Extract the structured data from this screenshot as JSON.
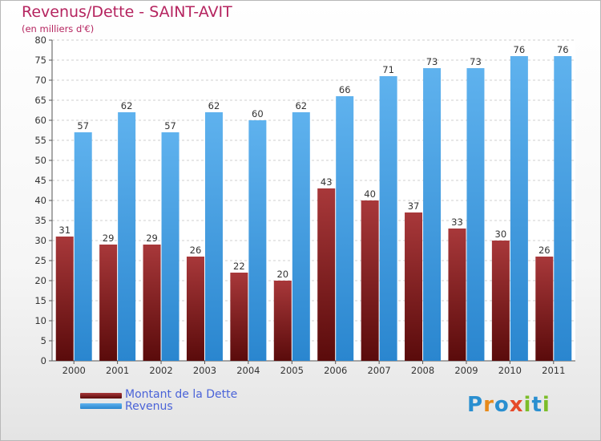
{
  "chart_data": {
    "type": "bar",
    "title": "Revenus/Dette - SAINT-AVIT",
    "subtitle": "(en milliers d'€)",
    "categories": [
      "2000",
      "2001",
      "2002",
      "2003",
      "2004",
      "2005",
      "2006",
      "2007",
      "2008",
      "2009",
      "2010",
      "2011"
    ],
    "series": [
      {
        "name": "Montant de la Dette",
        "color": "#7a1a1a",
        "values": [
          31,
          29,
          29,
          26,
          22,
          20,
          43,
          40,
          37,
          33,
          30,
          26
        ]
      },
      {
        "name": "Revenus",
        "color": "#3f9be0",
        "values": [
          57,
          62,
          57,
          62,
          60,
          62,
          66,
          71,
          73,
          73,
          76,
          76
        ]
      }
    ],
    "ylim": [
      0,
      80
    ],
    "ytick_step": 5,
    "grid": true,
    "legend_position": "bottom-left"
  },
  "logo": {
    "letters": [
      {
        "ch": "P",
        "color": "#2a8fd0"
      },
      {
        "ch": "r",
        "color": "#e88a1a"
      },
      {
        "ch": "o",
        "color": "#2a8fd0"
      },
      {
        "ch": "x",
        "color": "#e64a2a"
      },
      {
        "ch": "i",
        "color": "#7cbd2a"
      },
      {
        "ch": "t",
        "color": "#2a8fd0"
      },
      {
        "ch": "i",
        "color": "#7cbd2a"
      }
    ]
  }
}
